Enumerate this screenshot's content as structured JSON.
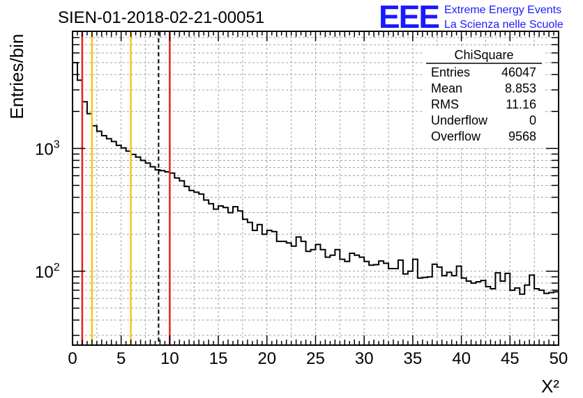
{
  "run_title": "SIEN-01-2018-02-21-00051",
  "logo": {
    "mark": "EEE",
    "line1": "Extreme Energy Events",
    "line2": "La Scienza nelle Scuole"
  },
  "stats_box": {
    "title": "ChiSquare",
    "rows": [
      {
        "label": "Entries",
        "value": "46047"
      },
      {
        "label": "Mean",
        "value": "8.853"
      },
      {
        "label": "RMS",
        "value": "11.16"
      },
      {
        "label": "Underflow",
        "value": "0"
      },
      {
        "label": "Overflow",
        "value": "9568"
      }
    ]
  },
  "colors": {
    "red_line": "#e8221d",
    "orange_line": "#f5c518",
    "mean_line": "#000000",
    "histogram": "#000000",
    "grid": "#a0a0a0",
    "logo": "#1a1aff"
  },
  "chart_data": {
    "type": "histogram",
    "title": "SIEN-01-2018-02-21-00051",
    "xlabel": "X²",
    "ylabel": "Entries/bin",
    "xlim": [
      0,
      50
    ],
    "ylim": [
      25,
      9000
    ],
    "y_scale": "log",
    "grid": true,
    "x_tick_labels": [
      "0",
      "5",
      "10",
      "15",
      "20",
      "25",
      "30",
      "35",
      "40",
      "45",
      "50"
    ],
    "y_tick_labels": [
      {
        "value": 1000,
        "base": "10",
        "exp": "3"
      },
      {
        "value": 100,
        "base": "10",
        "exp": "2"
      }
    ],
    "bin_width": 0.5,
    "bin_start": 0,
    "values": [
      5000,
      3600,
      2400,
      1920,
      1530,
      1380,
      1270,
      1200,
      1140,
      1060,
      1010,
      950,
      895,
      850,
      800,
      760,
      710,
      670,
      660,
      645,
      630,
      575,
      545,
      490,
      455,
      440,
      425,
      380,
      355,
      320,
      340,
      330,
      300,
      335,
      310,
      265,
      250,
      215,
      240,
      200,
      215,
      210,
      175,
      175,
      170,
      160,
      190,
      175,
      145,
      150,
      165,
      150,
      130,
      135,
      150,
      125,
      120,
      140,
      135,
      130,
      120,
      112,
      113,
      121,
      116,
      105,
      105,
      123,
      95,
      100,
      125,
      88,
      89,
      90,
      114,
      108,
      92,
      98,
      92,
      110,
      88,
      83,
      80,
      82,
      84,
      75,
      72,
      97,
      83,
      96,
      70,
      73,
      65,
      77,
      93,
      72,
      70,
      66,
      67,
      68
    ],
    "vertical_lines": [
      {
        "x": 1,
        "color": "#e8221d",
        "style": "solid"
      },
      {
        "x": 2,
        "color": "#f5c518",
        "style": "solid"
      },
      {
        "x": 6,
        "color": "#f5c518",
        "style": "solid"
      },
      {
        "x": 8.853,
        "color": "#000000",
        "style": "dashed"
      },
      {
        "x": 10,
        "color": "#e8221d",
        "style": "solid"
      }
    ]
  }
}
